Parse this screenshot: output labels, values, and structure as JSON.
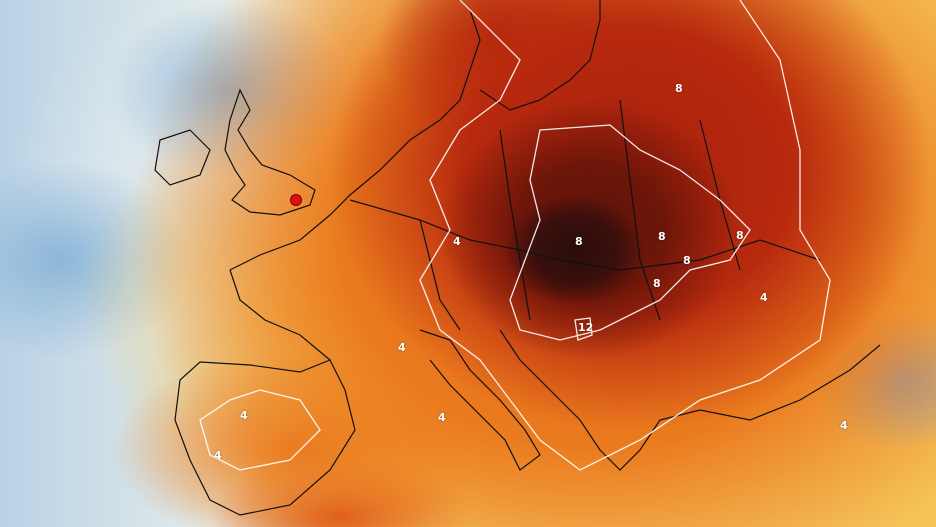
{
  "map": {
    "marker_color": "#e01010",
    "contour_color": "#ffffff",
    "contour_labels": [
      "8",
      "8",
      "8",
      "8",
      "8",
      "8",
      "12",
      "4",
      "4",
      "4",
      "4",
      "4",
      "4",
      "4"
    ],
    "palette": {
      "cold": "#8cb6d8",
      "neutral": "#f6d070",
      "warm": "#ea7a1e",
      "hot": "#b82a0e",
      "extreme": "#3a0f0c"
    }
  }
}
